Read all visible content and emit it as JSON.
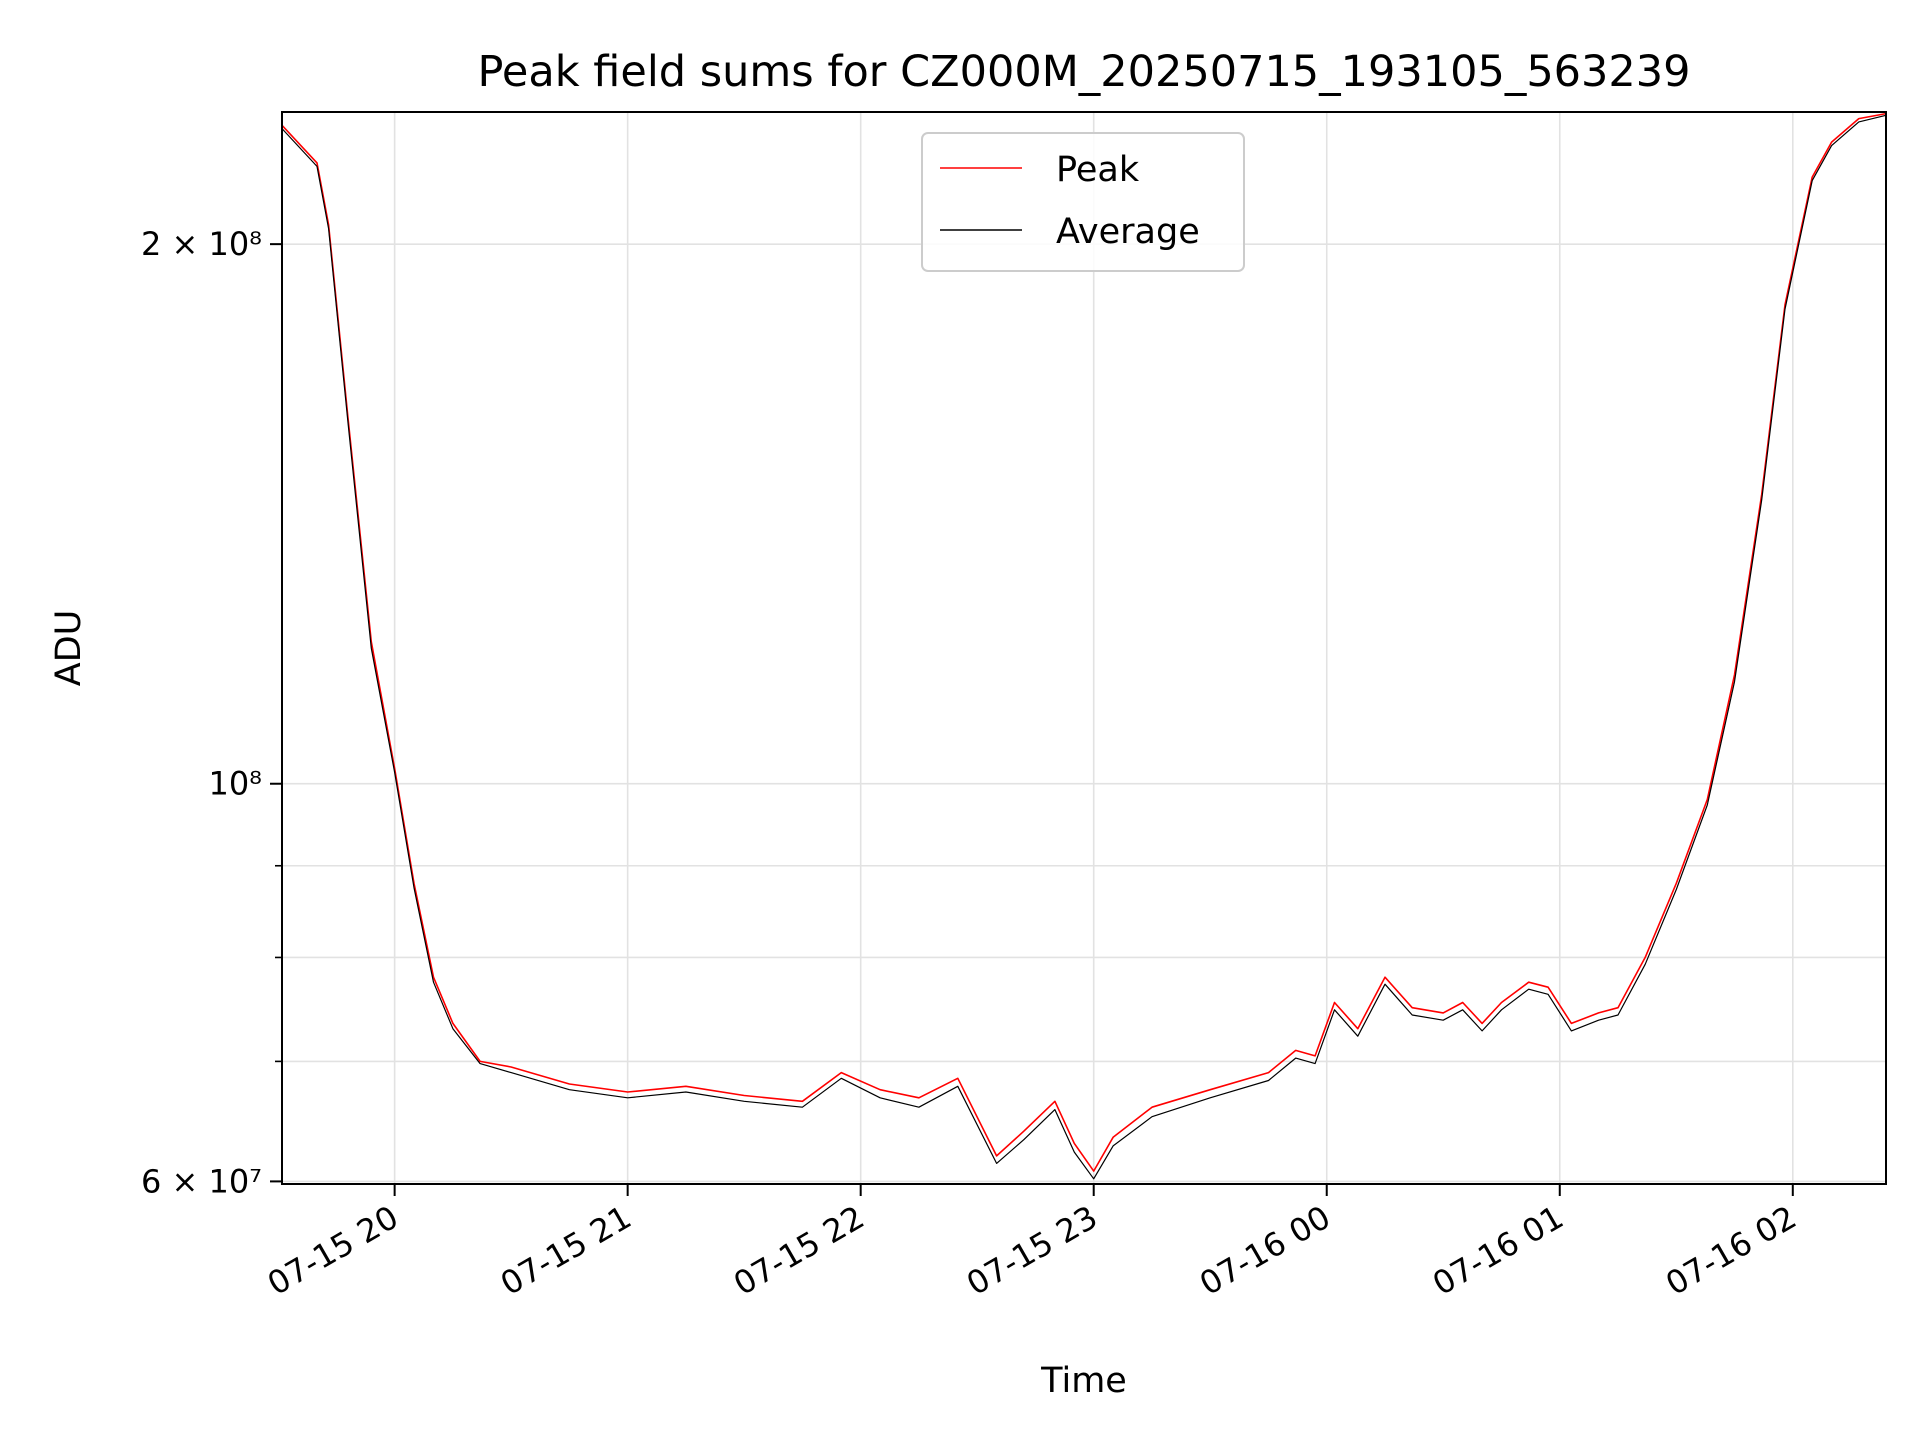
{
  "chart_data": {
    "type": "line",
    "title": "Peak field sums for CZ000M_20250715_193105_563239",
    "xlabel": "Time",
    "ylabel": "ADU",
    "y_scale": "log",
    "ylim": [
      59800000,
      237000000
    ],
    "xlim": [
      "2025-07-15 19:31",
      "2025-07-16 02:24"
    ],
    "grid": true,
    "legend_position": "top-center",
    "x_ticks": [
      {
        "value": "2025-07-15 20:00",
        "label": "07-15 20"
      },
      {
        "value": "2025-07-15 21:00",
        "label": "07-15 21"
      },
      {
        "value": "2025-07-15 22:00",
        "label": "07-15 22"
      },
      {
        "value": "2025-07-15 23:00",
        "label": "07-15 23"
      },
      {
        "value": "2025-07-16 00:00",
        "label": "07-16 00"
      },
      {
        "value": "2025-07-16 01:00",
        "label": "07-16 01"
      },
      {
        "value": "2025-07-16 02:00",
        "label": "07-16 02"
      }
    ],
    "y_ticks": [
      {
        "value": 60000000,
        "label": "6 × 10⁷"
      },
      {
        "value": 100000000,
        "label": "10⁸"
      },
      {
        "value": 200000000,
        "label": "2 × 10⁸"
      }
    ],
    "y_minor_ticks": [
      70000000,
      80000000,
      90000000
    ],
    "series": [
      {
        "name": "Peak",
        "color": "#ff0000",
        "x": [
          "2025-07-15 19:31",
          "2025-07-15 19:40",
          "2025-07-15 19:43",
          "2025-07-15 19:48",
          "2025-07-15 19:54",
          "2025-07-15 20:00",
          "2025-07-15 20:05",
          "2025-07-15 20:10",
          "2025-07-15 20:15",
          "2025-07-15 20:22",
          "2025-07-15 20:30",
          "2025-07-15 20:45",
          "2025-07-15 21:00",
          "2025-07-15 21:15",
          "2025-07-15 21:30",
          "2025-07-15 21:45",
          "2025-07-15 21:55",
          "2025-07-15 22:05",
          "2025-07-15 22:15",
          "2025-07-15 22:25",
          "2025-07-15 22:35",
          "2025-07-15 22:42",
          "2025-07-15 22:50",
          "2025-07-15 22:55",
          "2025-07-15 23:00",
          "2025-07-15 23:05",
          "2025-07-15 23:15",
          "2025-07-15 23:30",
          "2025-07-15 23:45",
          "2025-07-15 23:52",
          "2025-07-15 23:57",
          "2025-07-16 00:02",
          "2025-07-16 00:08",
          "2025-07-16 00:15",
          "2025-07-16 00:22",
          "2025-07-16 00:30",
          "2025-07-16 00:35",
          "2025-07-16 00:40",
          "2025-07-16 00:45",
          "2025-07-16 00:52",
          "2025-07-16 00:57",
          "2025-07-16 01:03",
          "2025-07-16 01:10",
          "2025-07-16 01:15",
          "2025-07-16 01:22",
          "2025-07-16 01:30",
          "2025-07-16 01:38",
          "2025-07-16 01:45",
          "2025-07-16 01:52",
          "2025-07-16 01:58",
          "2025-07-16 02:05",
          "2025-07-16 02:10",
          "2025-07-16 02:17",
          "2025-07-16 02:24"
        ],
        "values": [
          233000000,
          222000000,
          205000000,
          160000000,
          120000000,
          102000000,
          88000000,
          78000000,
          73500000,
          70000000,
          69500000,
          68000000,
          67300000,
          67800000,
          67000000,
          66500000,
          69000000,
          67500000,
          66800000,
          68500000,
          62000000,
          64000000,
          66500000,
          63000000,
          60800000,
          63500000,
          66000000,
          67500000,
          69000000,
          71000000,
          70500000,
          75500000,
          73000000,
          78000000,
          75000000,
          74500000,
          75500000,
          73500000,
          75500000,
          77500000,
          77000000,
          73500000,
          74500000,
          75000000,
          80000000,
          88000000,
          98000000,
          115000000,
          145000000,
          185000000,
          218000000,
          228000000,
          235000000,
          236500000
        ]
      },
      {
        "name": "Average",
        "color": "#000000",
        "x": [
          "2025-07-15 19:31",
          "2025-07-15 19:40",
          "2025-07-15 19:43",
          "2025-07-15 19:48",
          "2025-07-15 19:54",
          "2025-07-15 20:00",
          "2025-07-15 20:05",
          "2025-07-15 20:10",
          "2025-07-15 20:15",
          "2025-07-15 20:22",
          "2025-07-15 20:30",
          "2025-07-15 20:45",
          "2025-07-15 21:00",
          "2025-07-15 21:15",
          "2025-07-15 21:30",
          "2025-07-15 21:45",
          "2025-07-15 21:55",
          "2025-07-15 22:05",
          "2025-07-15 22:15",
          "2025-07-15 22:25",
          "2025-07-15 22:35",
          "2025-07-15 22:42",
          "2025-07-15 22:50",
          "2025-07-15 22:55",
          "2025-07-15 23:00",
          "2025-07-15 23:05",
          "2025-07-15 23:15",
          "2025-07-15 23:30",
          "2025-07-15 23:45",
          "2025-07-15 23:52",
          "2025-07-15 23:57",
          "2025-07-16 00:02",
          "2025-07-16 00:08",
          "2025-07-16 00:15",
          "2025-07-16 00:22",
          "2025-07-16 00:30",
          "2025-07-16 00:35",
          "2025-07-16 00:40",
          "2025-07-16 00:45",
          "2025-07-16 00:52",
          "2025-07-16 00:57",
          "2025-07-16 01:03",
          "2025-07-16 01:10",
          "2025-07-16 01:15",
          "2025-07-16 01:22",
          "2025-07-16 01:30",
          "2025-07-16 01:38",
          "2025-07-16 01:45",
          "2025-07-16 01:52",
          "2025-07-16 01:58",
          "2025-07-16 02:05",
          "2025-07-16 02:10",
          "2025-07-16 02:17",
          "2025-07-16 02:24"
        ],
        "values": [
          232000000,
          221000000,
          204000000,
          159000000,
          119000000,
          101500000,
          87500000,
          77500000,
          73000000,
          69800000,
          69000000,
          67500000,
          66800000,
          67300000,
          66500000,
          66000000,
          68500000,
          66800000,
          66000000,
          67800000,
          61400000,
          63300000,
          65800000,
          62300000,
          60200000,
          62800000,
          65200000,
          66800000,
          68300000,
          70300000,
          69800000,
          74800000,
          72300000,
          77300000,
          74300000,
          73800000,
          74800000,
          72800000,
          74800000,
          76800000,
          76300000,
          72800000,
          73800000,
          74300000,
          79300000,
          87300000,
          97300000,
          114000000,
          144000000,
          184000000,
          217000000,
          227000000,
          234000000,
          236000000
        ]
      }
    ]
  }
}
